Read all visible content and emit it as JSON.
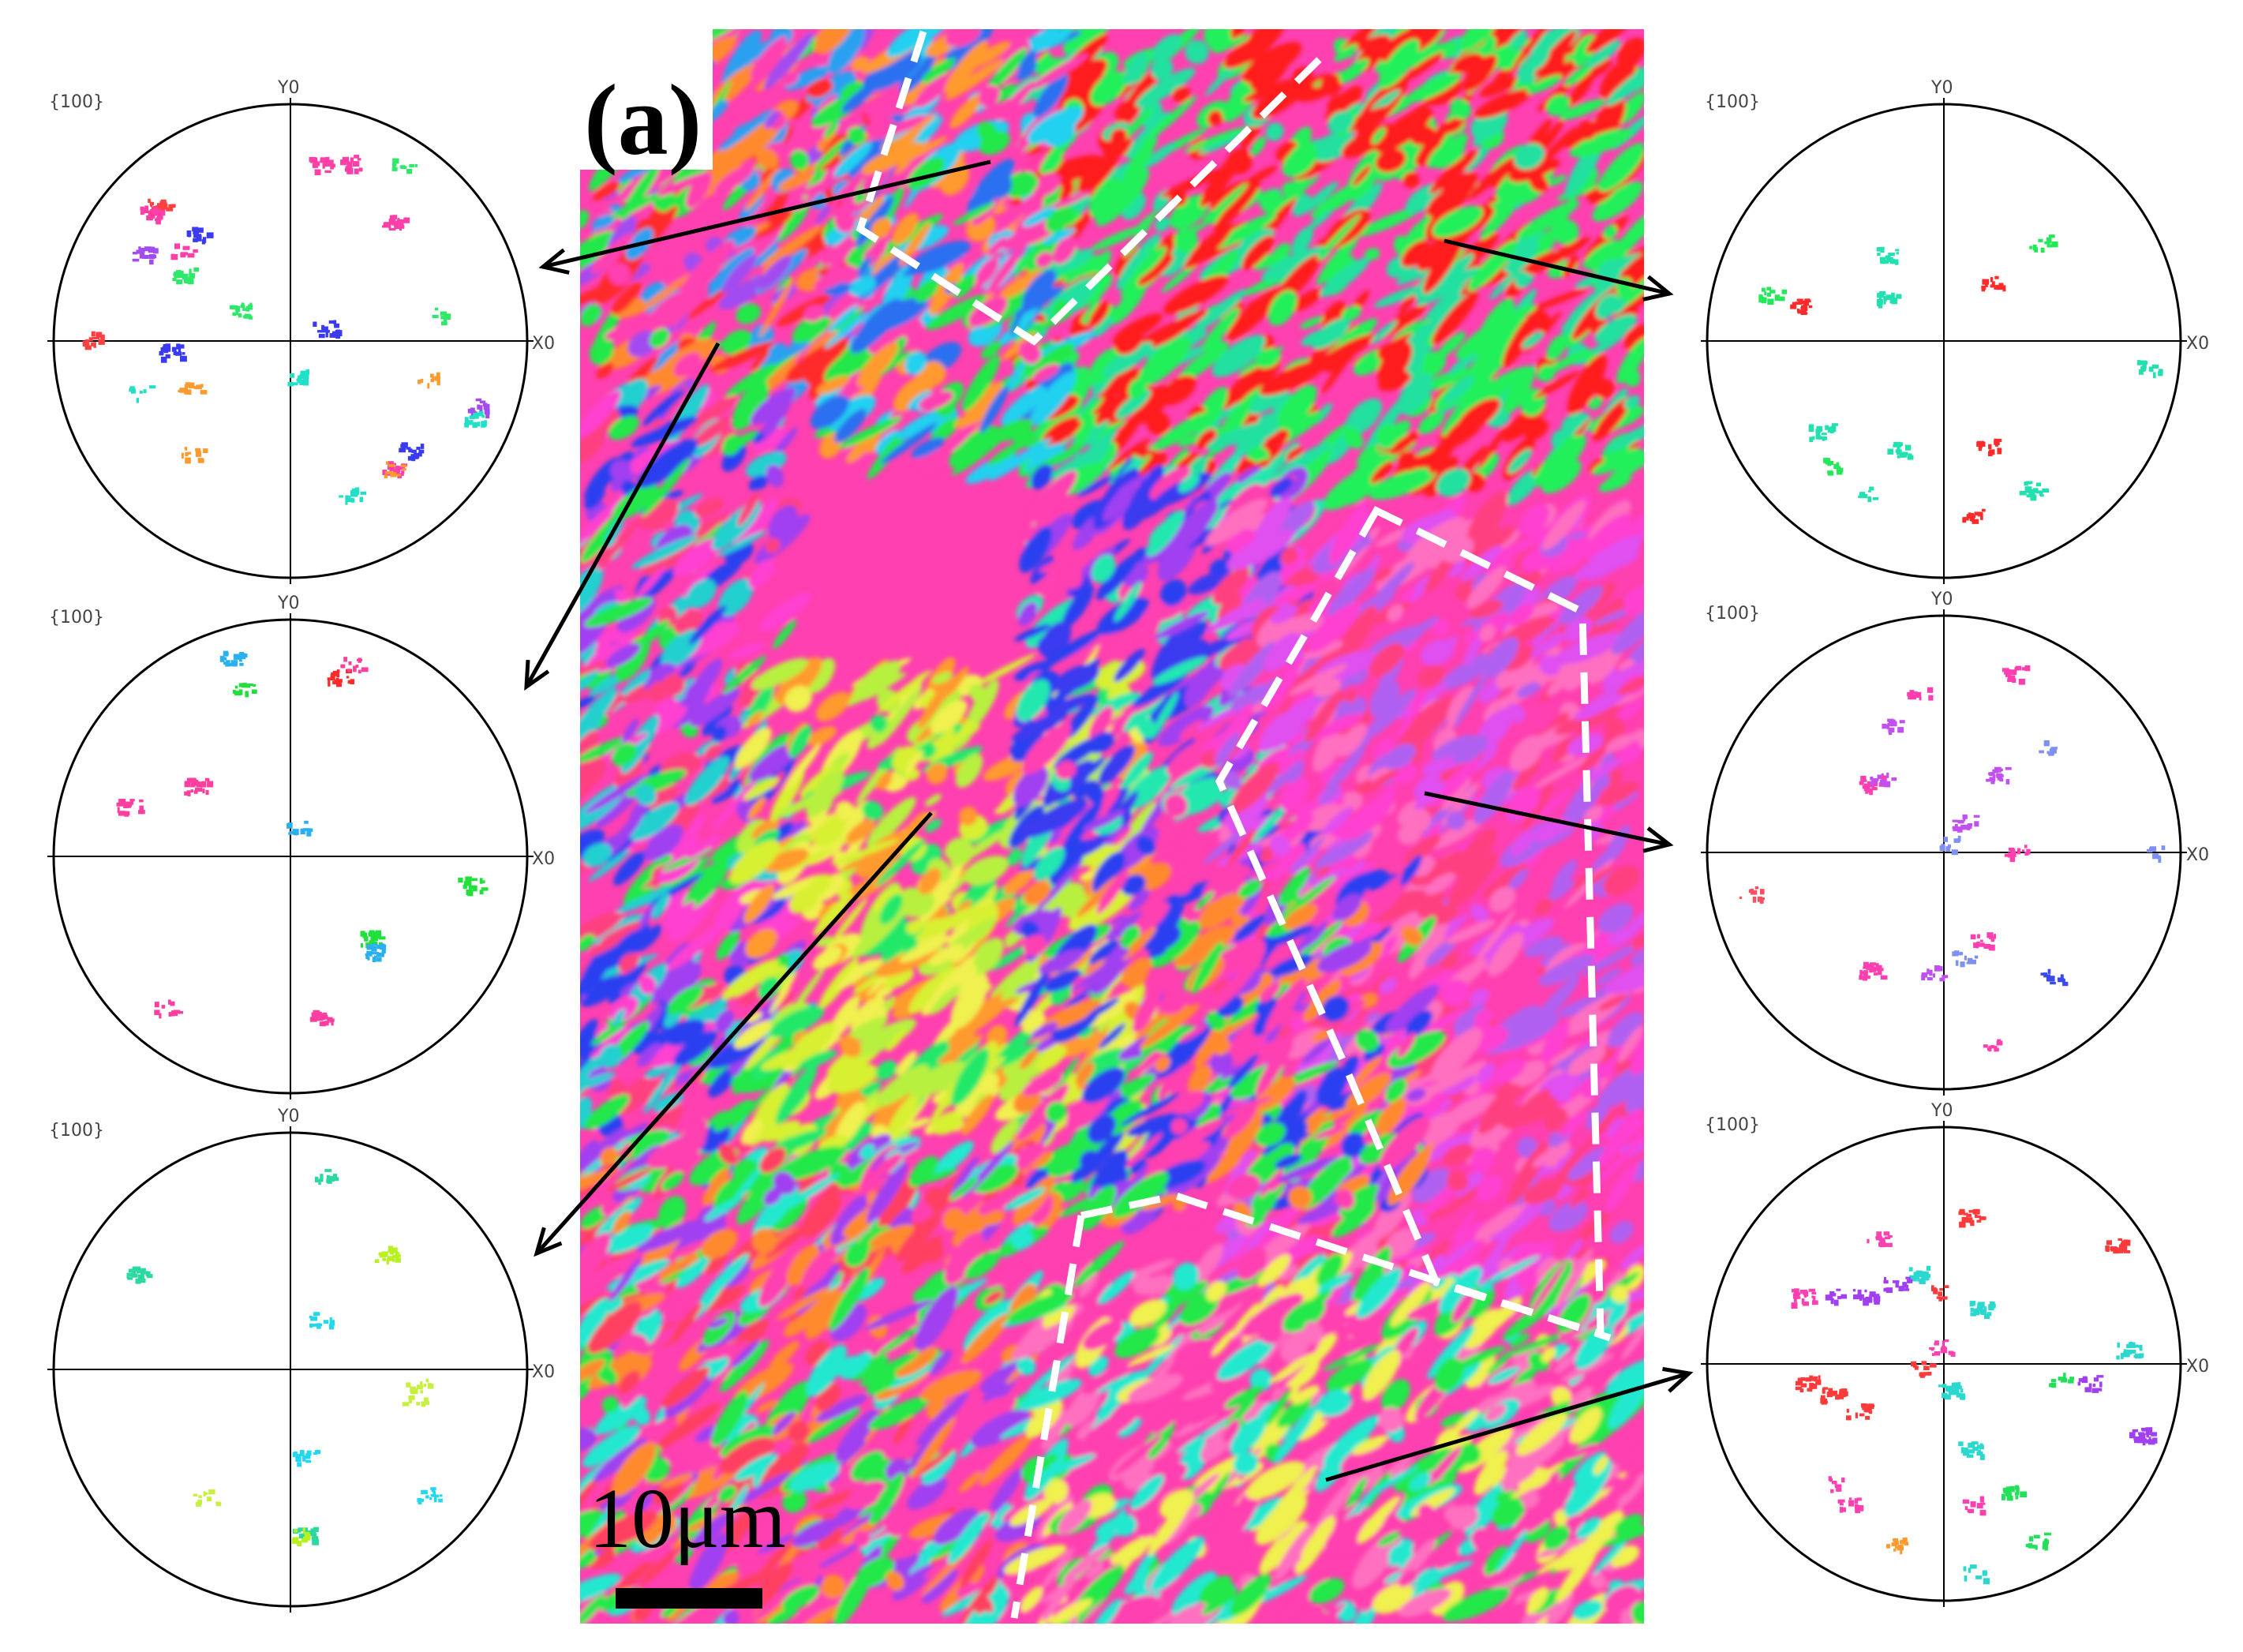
{
  "figure": {
    "panel_label": "(a)",
    "scale_bar_label": "10μm"
  },
  "pole_figures": [
    {
      "id": "left-top",
      "plane": "{100}",
      "y_axis": "Y0",
      "x_axis": "X0",
      "spot_colors": [
        "#3a3af0",
        "#ff3fa8",
        "#2ee86a",
        "#ff4040",
        "#ff9a2e",
        "#a24cf0",
        "#20e0c8"
      ]
    },
    {
      "id": "left-middle",
      "plane": "{100}",
      "y_axis": "Y0",
      "x_axis": "X0",
      "spot_colors": [
        "#ff2a2a",
        "#22e03c",
        "#2ab0f0",
        "#ff3fa0"
      ]
    },
    {
      "id": "left-bottom",
      "plane": "{100}",
      "y_axis": "Y0",
      "x_axis": "X0",
      "spot_colors": [
        "#b8f020",
        "#2ad8a0",
        "#22d8f0",
        "#c8f040"
      ]
    },
    {
      "id": "right-top",
      "plane": "{100}",
      "y_axis": "Y0",
      "x_axis": "X0",
      "spot_colors": [
        "#ff2a2a",
        "#22e85a",
        "#22e0b0"
      ]
    },
    {
      "id": "right-middle",
      "plane": "{100}",
      "y_axis": "Y0",
      "x_axis": "X0",
      "spot_colors": [
        "#3a4af0",
        "#ff3fb0",
        "#c050f0",
        "#ff5060",
        "#8090f0"
      ]
    },
    {
      "id": "right-bottom",
      "plane": "{100}",
      "y_axis": "Y0",
      "x_axis": "X0",
      "spot_colors": [
        "#ff3a3a",
        "#22e05a",
        "#a040f0",
        "#ff9a2e",
        "#2ad8d0",
        "#ff40b0"
      ]
    }
  ],
  "colors": {
    "boundary_dashed": "#ffffff",
    "arrow": "#000000",
    "circle": "#000000"
  }
}
